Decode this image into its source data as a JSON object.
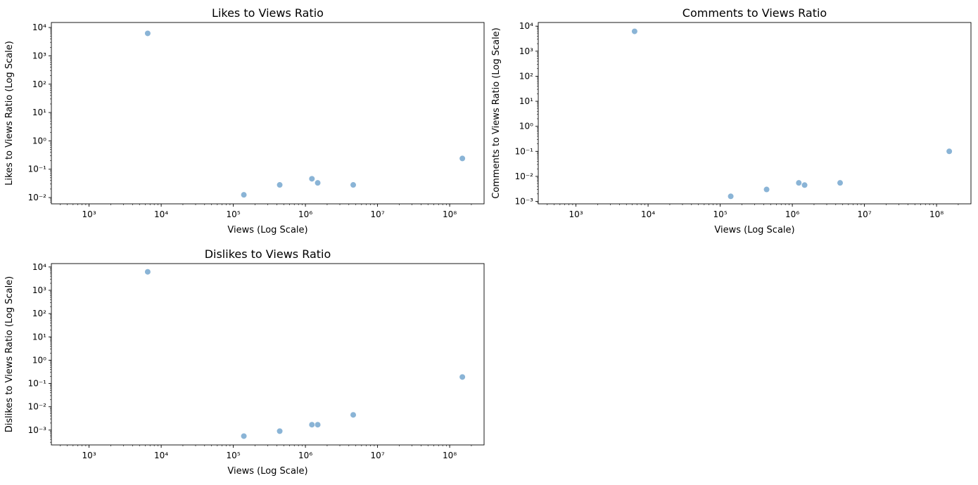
{
  "chart_data": [
    {
      "type": "scatter",
      "title": "Likes to Views Ratio",
      "xlabel": "Views (Log Scale)",
      "ylabel": "Likes to Views Ratio (Log Scale)",
      "xscale": "log",
      "yscale": "log",
      "xlim": [
        300,
        300000000
      ],
      "ylim": [
        0.006,
        15000
      ],
      "xticks": [
        1000,
        10000,
        100000,
        1000000,
        10000000,
        100000000
      ],
      "yticks": [
        0.01,
        0.1,
        1,
        10,
        100,
        1000,
        10000
      ],
      "grid": false,
      "marker_color": "#8ab4d6",
      "x": [
        6500,
        140000,
        440000,
        1230000,
        1480000,
        4600000,
        150000000
      ],
      "y": [
        6200,
        0.0125,
        0.028,
        0.046,
        0.033,
        0.028,
        0.24
      ]
    },
    {
      "type": "scatter",
      "title": "Comments to Views Ratio",
      "xlabel": "Views (Log Scale)",
      "ylabel": "Comments to Views Ratio (Log Scale)",
      "xscale": "log",
      "yscale": "log",
      "xlim": [
        300,
        300000000
      ],
      "ylim": [
        0.0008,
        14000
      ],
      "xticks": [
        1000,
        10000,
        100000,
        1000000,
        10000000,
        100000000
      ],
      "yticks": [
        0.001,
        0.01,
        0.1,
        1,
        10,
        100,
        1000,
        10000
      ],
      "grid": false,
      "marker_color": "#8ab4d6",
      "x": [
        6500,
        140000,
        440000,
        1230000,
        1480000,
        4600000,
        150000000
      ],
      "y": [
        6200,
        0.0016,
        0.003,
        0.0055,
        0.0045,
        0.0055,
        0.1
      ]
    },
    {
      "type": "scatter",
      "title": "Dislikes to Views Ratio",
      "xlabel": "Views (Log Scale)",
      "ylabel": "Dislikes to Views Ratio (Log Scale)",
      "xscale": "log",
      "yscale": "log",
      "xlim": [
        300,
        300000000
      ],
      "ylim": [
        0.00023,
        14000
      ],
      "xticks": [
        1000,
        10000,
        100000,
        1000000,
        10000000,
        100000000
      ],
      "yticks": [
        0.001,
        0.01,
        0.1,
        1,
        10,
        100,
        1000,
        10000
      ],
      "grid": false,
      "marker_color": "#8ab4d6",
      "x": [
        6500,
        140000,
        440000,
        1230000,
        1480000,
        4600000,
        150000000
      ],
      "y": [
        6200,
        0.00055,
        0.0009,
        0.0017,
        0.0017,
        0.0045,
        0.19
      ]
    }
  ]
}
